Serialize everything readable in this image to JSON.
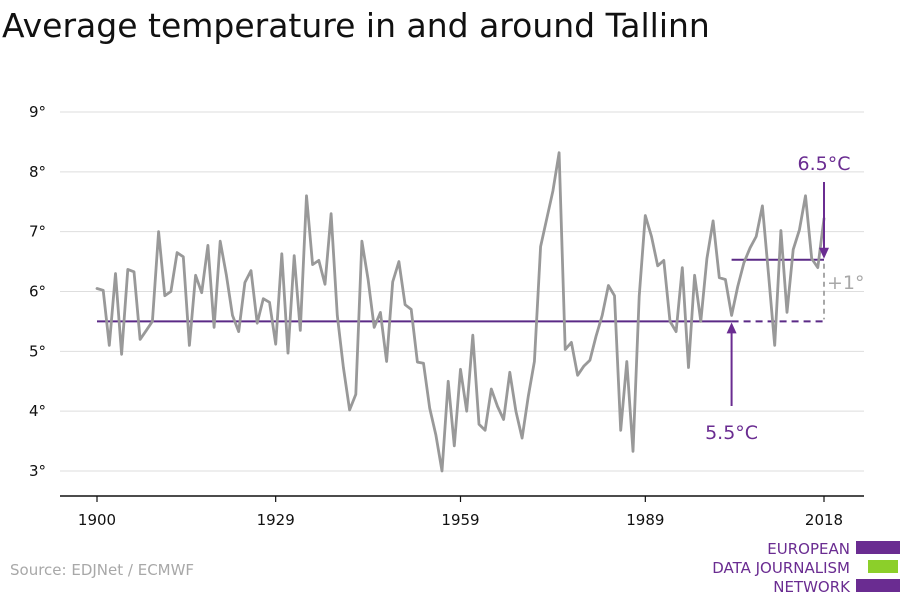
{
  "title": "Average temperature in and around Tallinn",
  "source": "Source: EDJNet / ECMWF",
  "logo": {
    "lines": [
      "EUROPEAN",
      "DATA JOURNALISM",
      "NETWORK"
    ],
    "colors": [
      "#6a2c91",
      "#8ccf2a",
      "#6a2c91"
    ]
  },
  "chart_data": {
    "type": "line",
    "title": "Average temperature in and around Tallinn",
    "xlabel": "",
    "ylabel": "",
    "x_ticks": [
      1900,
      1929,
      1959,
      1989,
      2018
    ],
    "y_ticks": [
      3,
      4,
      5,
      6,
      7,
      8,
      9
    ],
    "y_tick_suffix": "°",
    "xlim": [
      1900,
      2018
    ],
    "ylim": [
      2.6,
      9.3
    ],
    "grid": true,
    "series": [
      {
        "color": "#999999",
        "x": [
          1900,
          1901,
          1902,
          1903,
          1904,
          1905,
          1906,
          1907,
          1908,
          1909,
          1910,
          1911,
          1912,
          1913,
          1914,
          1915,
          1916,
          1917,
          1918,
          1919,
          1920,
          1921,
          1922,
          1923,
          1924,
          1925,
          1926,
          1927,
          1928,
          1929,
          1930,
          1931,
          1932,
          1933,
          1934,
          1935,
          1936,
          1937,
          1938,
          1939,
          1940,
          1941,
          1942,
          1943,
          1944,
          1945,
          1946,
          1947,
          1948,
          1949,
          1950,
          1951,
          1952,
          1953,
          1954,
          1955,
          1956,
          1957,
          1958,
          1959,
          1960,
          1961,
          1962,
          1963,
          1964,
          1965,
          1966,
          1967,
          1968,
          1969,
          1970,
          1971,
          1972,
          1973,
          1974,
          1975,
          1976,
          1977,
          1978,
          1979,
          1980,
          1981,
          1982,
          1983,
          1984,
          1985,
          1986,
          1987,
          1988,
          1989,
          1990,
          1991,
          1992,
          1993,
          1994,
          1995,
          1996,
          1997,
          1998,
          1999,
          2000,
          2001,
          2002,
          2003,
          2004,
          2005,
          2006,
          2007,
          2008,
          2009,
          2010,
          2011,
          2012,
          2013,
          2014,
          2015,
          2016,
          2017,
          2018
        ],
        "values": [
          6.05,
          6.02,
          5.1,
          6.3,
          4.95,
          6.37,
          6.33,
          5.2,
          5.35,
          5.5,
          7.0,
          5.93,
          6.0,
          6.65,
          6.58,
          5.1,
          6.27,
          5.98,
          6.77,
          5.4,
          6.84,
          6.27,
          5.6,
          5.33,
          6.15,
          6.35,
          5.47,
          5.88,
          5.82,
          5.12,
          6.63,
          4.97,
          6.6,
          5.35,
          7.6,
          6.45,
          6.52,
          6.12,
          7.3,
          5.6,
          4.73,
          4.02,
          4.28,
          6.84,
          6.2,
          5.4,
          5.65,
          4.83,
          6.16,
          6.5,
          5.78,
          5.7,
          4.82,
          4.8,
          4.05,
          3.6,
          3.0,
          4.5,
          3.42,
          4.7,
          4.0,
          5.27,
          3.78,
          3.68,
          4.37,
          4.08,
          3.86,
          4.65,
          4.0,
          3.55,
          4.25,
          4.83,
          6.75,
          7.22,
          7.68,
          8.32,
          5.03,
          5.15,
          4.6,
          4.75,
          4.85,
          5.25,
          5.6,
          6.1,
          5.93,
          3.68,
          4.83,
          3.33,
          5.92,
          7.27,
          6.92,
          6.43,
          6.52,
          5.5,
          5.33,
          6.4,
          4.73,
          6.27,
          5.5,
          6.55,
          7.18,
          6.23,
          6.2,
          5.6,
          6.08,
          6.48,
          6.73,
          6.92,
          7.43,
          6.27,
          5.1,
          7.02,
          5.65,
          6.7,
          7.03,
          7.6,
          6.55,
          6.4,
          7.22
        ]
      }
    ],
    "reference_lines": [
      {
        "value": 5.5,
        "from": 1900,
        "to": 2018,
        "dashed_from": 2003,
        "color": "#5b2a86"
      },
      {
        "value": 6.53,
        "from": 2003,
        "to": 2018,
        "color": "#5b2a86"
      }
    ],
    "annotations": [
      {
        "label": "6.5°C",
        "color": "#6a2c91",
        "arrow_x": 2018,
        "arrow_to": 6.53
      },
      {
        "label": "5.5°C",
        "color": "#6a2c91",
        "arrow_x": 2003,
        "arrow_to": 5.5
      },
      {
        "label": "+1°",
        "color": "#a8a8a8",
        "x": 2018,
        "from": 5.5,
        "to": 6.53
      }
    ]
  }
}
